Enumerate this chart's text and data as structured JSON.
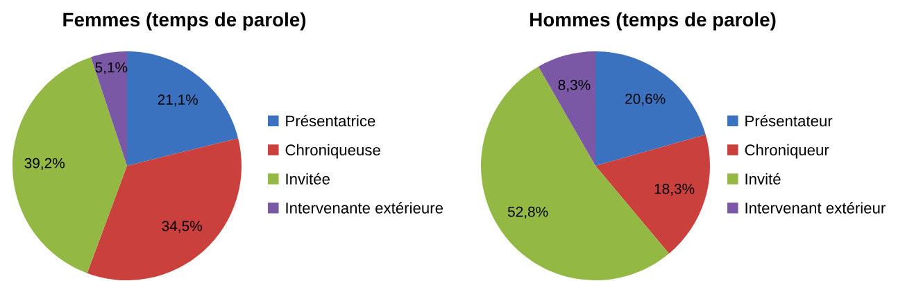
{
  "chart_data": [
    {
      "type": "pie",
      "title": "Femmes (temps de parole)",
      "categories": [
        "Présentatrice",
        "Chroniqueuse",
        "Invitée",
        "Intervenante extérieure"
      ],
      "values": [
        21.1,
        34.5,
        39.2,
        5.1
      ],
      "value_labels": [
        "21,1%",
        "34,5%",
        "39,2%",
        "5,1%"
      ],
      "colors": [
        "#3b72c0",
        "#c9403d",
        "#93b843",
        "#7b58a6"
      ],
      "legend": "right"
    },
    {
      "type": "pie",
      "title": "Hommes (temps de parole)",
      "categories": [
        "Présentateur",
        "Chroniqueur",
        "Invité",
        "Intervenant extérieur"
      ],
      "values": [
        20.6,
        18.3,
        52.8,
        8.3
      ],
      "value_labels": [
        "20,6%",
        "18,3%",
        "52,8%",
        "8,3%"
      ],
      "colors": [
        "#3b72c0",
        "#c9403d",
        "#93b843",
        "#7b58a6"
      ],
      "legend": "right"
    }
  ]
}
